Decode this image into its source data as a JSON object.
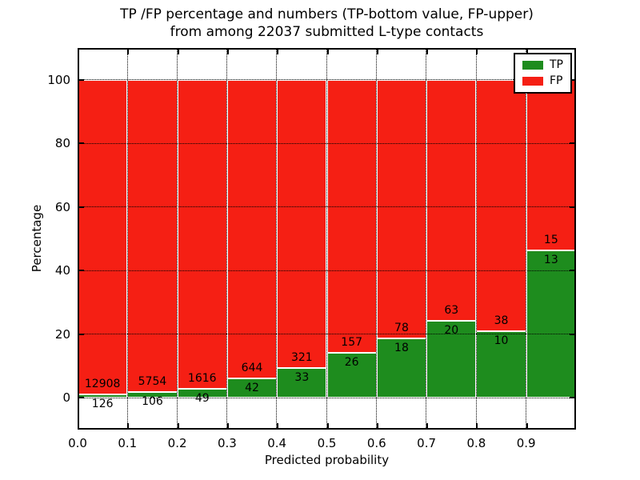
{
  "figure": {
    "title_line1": "TP /FP percentage and numbers (TP-bottom value, FP-upper)",
    "title_line2": "from among 22037 submitted L-type contacts"
  },
  "chart_data": {
    "type": "bar",
    "stacked": true,
    "title": "TP /FP percentage and numbers (TP-bottom value, FP-upper)\nfrom among 22037 submitted L-type contacts",
    "xlabel": "Predicted probability",
    "ylabel": "Percentage",
    "total_contacts": 22037,
    "bins": [
      "0.0-0.1",
      "0.1-0.2",
      "0.2-0.3",
      "0.3-0.4",
      "0.4-0.5",
      "0.5-0.6",
      "0.6-0.7",
      "0.7-0.8",
      "0.8-0.9",
      "0.9-1.0"
    ],
    "x_tick_labels": [
      "0.0",
      "0.1",
      "0.2",
      "0.3",
      "0.4",
      "0.5",
      "0.6",
      "0.7",
      "0.8",
      "0.9"
    ],
    "y_tick_values": [
      0,
      20,
      40,
      60,
      80,
      100
    ],
    "xlim": [
      0.0,
      1.0
    ],
    "ylim": [
      -10,
      110
    ],
    "grid": true,
    "grid_style": "dotted",
    "legend_position": "upper right",
    "series": [
      {
        "name": "TP",
        "color": "#1e8c1e",
        "counts": [
          126,
          106,
          49,
          42,
          33,
          26,
          18,
          20,
          10,
          13
        ]
      },
      {
        "name": "FP",
        "color": "#f51f14",
        "counts": [
          12908,
          5754,
          1616,
          644,
          321,
          157,
          78,
          63,
          38,
          15
        ]
      }
    ],
    "tp_percent": [
      0.97,
      1.81,
      2.94,
      6.12,
      9.32,
      14.21,
      18.75,
      24.1,
      20.83,
      46.43
    ]
  },
  "colors": {
    "tp": "#1e8c1e",
    "fp": "#f51f14",
    "grid": "#000000",
    "bar_edge": "#ffffff",
    "text": "#000000",
    "background": "#ffffff"
  }
}
